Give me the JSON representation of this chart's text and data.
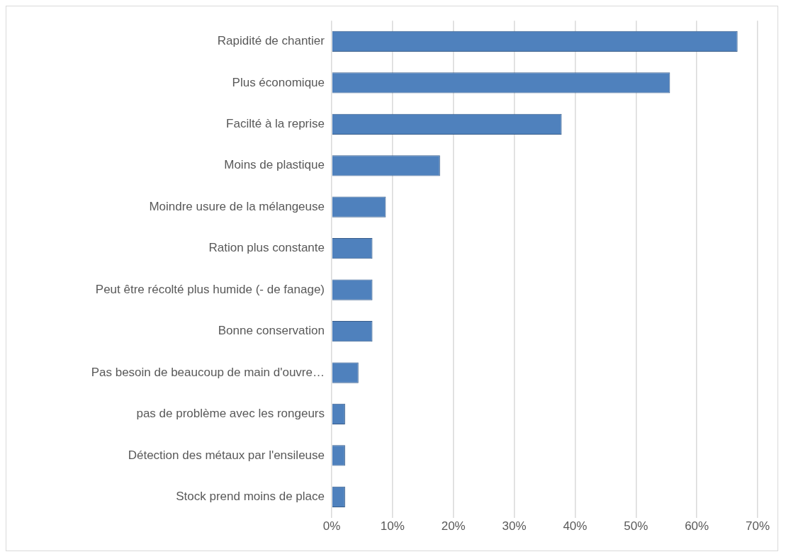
{
  "chart_data": {
    "type": "bar",
    "orientation": "horizontal",
    "categories": [
      "Rapidité de chantier",
      "Plus économique",
      "Facilté à la reprise",
      "Moins de plastique",
      "Moindre usure de la mélangeuse",
      "Ration plus constante",
      "Peut être récolté plus humide (- de fanage)",
      "Bonne conservation",
      "Pas besoin de beaucoup de main d'ouvre…",
      "pas de problème avec les rongeurs",
      "Détection des métaux par l'ensileuse",
      "Stock prend moins de place"
    ],
    "values": [
      66.7,
      55.6,
      37.8,
      17.8,
      8.9,
      6.7,
      6.7,
      6.7,
      4.4,
      2.2,
      2.2,
      2.2
    ],
    "color": "#4f81bd",
    "xlim": [
      0,
      70
    ],
    "xticks": [
      {
        "value": 0,
        "label": "0%"
      },
      {
        "value": 10,
        "label": "10%"
      },
      {
        "value": 20,
        "label": "20%"
      },
      {
        "value": 30,
        "label": "30%"
      },
      {
        "value": 40,
        "label": "40%"
      },
      {
        "value": 50,
        "label": "50%"
      },
      {
        "value": 60,
        "label": "60%"
      },
      {
        "value": 70,
        "label": "70%"
      }
    ],
    "grid": "x",
    "legend": false
  }
}
